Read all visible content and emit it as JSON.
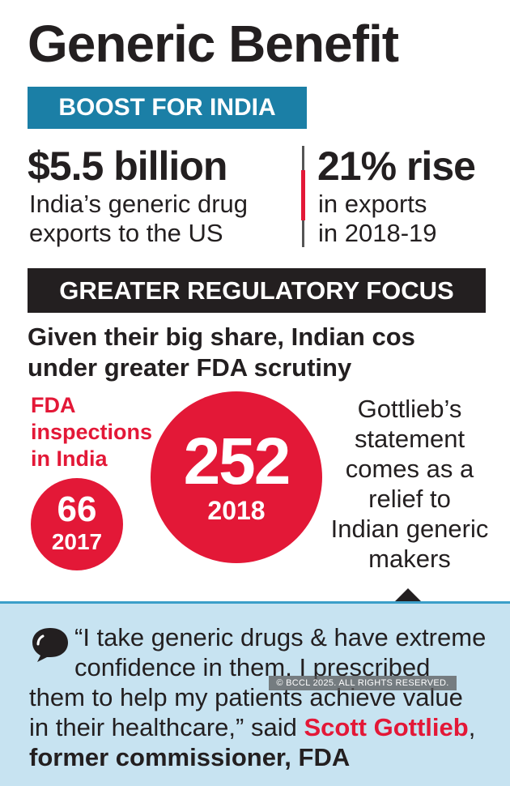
{
  "title": "Generic Benefit",
  "boost_banner": "BOOST FOR INDIA",
  "stats": [
    {
      "value": "$5.5 billion",
      "line1": "India’s generic drug",
      "line2": "exports to the US"
    },
    {
      "value": "21% rise",
      "line1": "in exports",
      "line2": "in 2018-19"
    }
  ],
  "focus_banner": "GREATER REGULATORY FOCUS",
  "focus_sub": {
    "line1": "Given their big share, Indian cos",
    "line2": "under greater FDA scrutiny"
  },
  "inspections": {
    "label_lines": [
      "FDA",
      "inspections",
      "in India"
    ],
    "items": [
      {
        "value": "66",
        "year": "2017"
      },
      {
        "value": "252",
        "year": "2018"
      }
    ]
  },
  "note_lines": [
    "Gottlieb’s",
    "statement",
    "comes as a",
    "relief to",
    "Indian generic",
    "makers"
  ],
  "quote": {
    "line1": "“I take generic drugs & have extreme",
    "line2": "confidence in them. I prescribed",
    "line3": "them to help my patients achieve value",
    "line4_prefix": "in their healthcare,” said ",
    "name": "Scott Gottlieb",
    "line4_suffix": ",",
    "title": "former commissioner, FDA"
  },
  "watermark": "© BCCL 2025. ALL RIGHTS RESERVED.",
  "colors": {
    "accent_red": "#e31837",
    "banner_blue": "#1b7fa6",
    "dark": "#231f20",
    "panel_blue": "#c7e3f1"
  },
  "icons": {
    "quote": "speech-bubble-icon"
  }
}
